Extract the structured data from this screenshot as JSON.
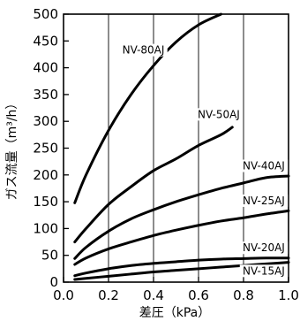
{
  "chart_data": {
    "type": "line",
    "xlabel": "差圧（kPa）",
    "ylabel": "ガス流量（m³/h）",
    "xlim": [
      0.0,
      1.0
    ],
    "ylim": [
      0,
      500
    ],
    "x_ticks": [
      "0.0",
      "0.2",
      "0.4",
      "0.6",
      "0.8",
      "1.0"
    ],
    "x_tick_values": [
      0.0,
      0.2,
      0.4,
      0.6,
      0.8,
      1.0
    ],
    "y_ticks": [
      "0",
      "50",
      "100",
      "150",
      "200",
      "250",
      "300",
      "350",
      "400",
      "450",
      "500"
    ],
    "y_tick_values": [
      0,
      50,
      100,
      150,
      200,
      250,
      300,
      350,
      400,
      450,
      500
    ],
    "grid": "vertical",
    "series": [
      {
        "name": "NV-80AJ",
        "points": [
          [
            0.05,
            148
          ],
          [
            0.1,
            200
          ],
          [
            0.2,
            283
          ],
          [
            0.3,
            350
          ],
          [
            0.4,
            404
          ],
          [
            0.5,
            448
          ],
          [
            0.6,
            480
          ],
          [
            0.7,
            500
          ]
        ]
      },
      {
        "name": "NV-50AJ",
        "points": [
          [
            0.05,
            75
          ],
          [
            0.1,
            100
          ],
          [
            0.2,
            145
          ],
          [
            0.3,
            178
          ],
          [
            0.4,
            208
          ],
          [
            0.5,
            230
          ],
          [
            0.6,
            255
          ],
          [
            0.7,
            275
          ],
          [
            0.75,
            289
          ]
        ]
      },
      {
        "name": "NV-40AJ",
        "points": [
          [
            0.05,
            44
          ],
          [
            0.1,
            65
          ],
          [
            0.2,
            95
          ],
          [
            0.3,
            118
          ],
          [
            0.4,
            135
          ],
          [
            0.5,
            150
          ],
          [
            0.6,
            163
          ],
          [
            0.7,
            175
          ],
          [
            0.8,
            185
          ],
          [
            0.9,
            195
          ],
          [
            1.0,
            198
          ]
        ]
      },
      {
        "name": "NV-25AJ",
        "points": [
          [
            0.05,
            33
          ],
          [
            0.1,
            45
          ],
          [
            0.2,
            62
          ],
          [
            0.3,
            75
          ],
          [
            0.4,
            87
          ],
          [
            0.5,
            97
          ],
          [
            0.6,
            106
          ],
          [
            0.7,
            114
          ],
          [
            0.8,
            120
          ],
          [
            0.9,
            127
          ],
          [
            1.0,
            133
          ]
        ]
      },
      {
        "name": "NV-20AJ",
        "points": [
          [
            0.05,
            12
          ],
          [
            0.1,
            17
          ],
          [
            0.2,
            25
          ],
          [
            0.3,
            31
          ],
          [
            0.4,
            35
          ],
          [
            0.5,
            38
          ],
          [
            0.6,
            41
          ],
          [
            0.7,
            43
          ],
          [
            0.8,
            44
          ],
          [
            0.9,
            45
          ],
          [
            1.0,
            45
          ]
        ]
      },
      {
        "name": "NV-15AJ",
        "points": [
          [
            0.05,
            5
          ],
          [
            0.1,
            7
          ],
          [
            0.2,
            11
          ],
          [
            0.3,
            15
          ],
          [
            0.4,
            19
          ],
          [
            0.5,
            22
          ],
          [
            0.6,
            25
          ],
          [
            0.7,
            28
          ],
          [
            0.8,
            31
          ],
          [
            0.9,
            34
          ],
          [
            1.0,
            37
          ]
        ]
      }
    ],
    "series_labels": [
      {
        "text": "NV-80AJ",
        "x": 0.355,
        "y": 428
      },
      {
        "text": "NV-50AJ",
        "x": 0.69,
        "y": 308
      },
      {
        "text": "NV-40AJ",
        "x": 0.89,
        "y": 212
      },
      {
        "text": "NV-25AJ",
        "x": 0.89,
        "y": 147
      },
      {
        "text": "NV-20AJ",
        "x": 0.89,
        "y": 59
      },
      {
        "text": "NV-15AJ",
        "x": 0.89,
        "y": 16
      }
    ]
  }
}
